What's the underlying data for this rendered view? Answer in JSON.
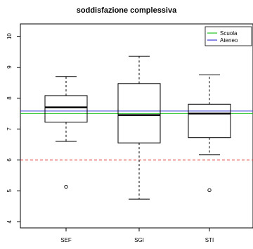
{
  "chart_data": {
    "type": "box",
    "title": "soddisfazione complessiva",
    "xlabel": "",
    "ylabel": "",
    "ylim": [
      3.8,
      10.4
    ],
    "yticks": [
      4,
      5,
      6,
      7,
      8,
      9,
      10
    ],
    "categories": [
      "SEF",
      "SGI",
      "STI"
    ],
    "boxes": [
      {
        "category": "SEF",
        "whisker_low": 6.6,
        "q1": 7.22,
        "median": 7.7,
        "q3": 8.08,
        "whisker_high": 8.7,
        "outliers": [
          5.13
        ]
      },
      {
        "category": "SGI",
        "whisker_low": 4.73,
        "q1": 6.55,
        "median": 7.45,
        "q3": 8.47,
        "whisker_high": 9.35,
        "outliers": []
      },
      {
        "category": "STI",
        "whisker_low": 6.17,
        "q1": 6.72,
        "median": 7.5,
        "q3": 7.8,
        "whisker_high": 8.75,
        "outliers": [
          5.02
        ]
      }
    ],
    "reference_lines": [
      {
        "name": "Scuola",
        "value": 7.5,
        "color": "#22c322",
        "style": "solid"
      },
      {
        "name": "Ateneo",
        "value": 7.58,
        "color": "#3a3ad6",
        "style": "solid"
      },
      {
        "name": "",
        "value": 6.0,
        "color": "#e01f1f",
        "style": "dashed"
      }
    ],
    "legend": {
      "position": "top-right",
      "entries": [
        {
          "label": "Scuola",
          "color": "#22c322"
        },
        {
          "label": "Ateneo",
          "color": "#3a3ad6"
        }
      ]
    }
  }
}
